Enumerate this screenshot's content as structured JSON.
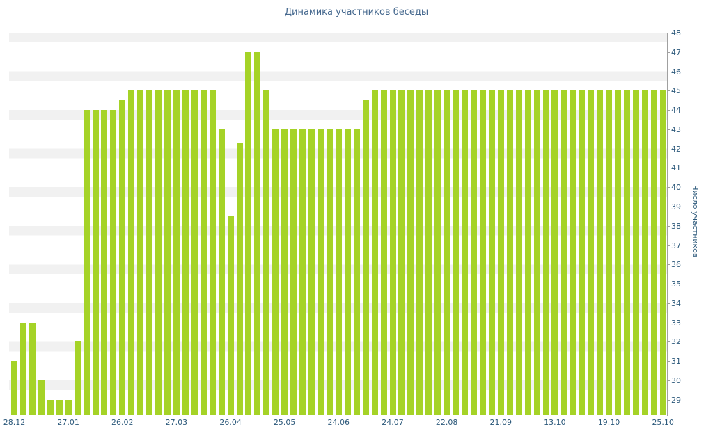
{
  "chart_data": {
    "type": "bar",
    "title": "Динамика участников беседы",
    "ylabel": "Число участников",
    "xlabel": "",
    "ylim": [
      28.2,
      48
    ],
    "grid": "horizontal-stripes",
    "legend": "none",
    "y_ticks": [
      48,
      47,
      46,
      45,
      44,
      43,
      42,
      41,
      40,
      39,
      38,
      37,
      36,
      35,
      34,
      33,
      32,
      31,
      30,
      29
    ],
    "x_tick_labels": [
      "28.12",
      "27.01",
      "26.02",
      "27.03",
      "26.04",
      "25.05",
      "24.06",
      "24.07",
      "22.08",
      "21.09",
      "13.10",
      "19.10",
      "25.10"
    ],
    "x_tick_bar_indices": [
      0,
      6,
      12,
      18,
      24,
      30,
      36,
      42,
      48,
      54,
      60,
      66,
      72
    ],
    "values": [
      31,
      33,
      33,
      30,
      29,
      29,
      29,
      32,
      44,
      44,
      44,
      44,
      44.5,
      45,
      45,
      45,
      45,
      45,
      45,
      45,
      45,
      45,
      45,
      43,
      38.5,
      42.3,
      47,
      47,
      45,
      43,
      43,
      43,
      43,
      43,
      43,
      43,
      43,
      43,
      43,
      44.5,
      45,
      45,
      45,
      45,
      45,
      45,
      45,
      45,
      45,
      45,
      45,
      45,
      45,
      45,
      45,
      45,
      45,
      45,
      45,
      45,
      45,
      45,
      45,
      45,
      45,
      45,
      45,
      45,
      45,
      45,
      45,
      45,
      45
    ],
    "colors": {
      "bar": "#a5d327",
      "title_text": "#45688e",
      "tick_text": "#2b587a",
      "stripe": "#f1f1f1",
      "axis_line": "#a0a0a0"
    }
  }
}
